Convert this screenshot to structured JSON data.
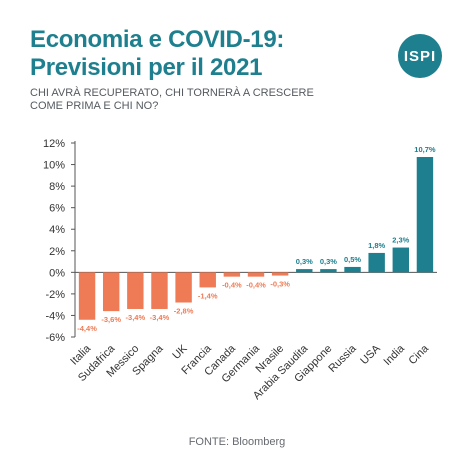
{
  "header": {
    "title_line1": "Economia e COVID-19:",
    "title_line2": "Previsioni per il 2021",
    "subtitle_line1": "CHI AVRÀ RECUPERATO, CHI TORNERÀ A CRESCERE",
    "subtitle_line2": "COME PRIMA E CHI NO?"
  },
  "logo": {
    "text": "ISPI"
  },
  "footer": {
    "source": "FONTE: Bloomberg"
  },
  "colors": {
    "negative": "#ee7b55",
    "positive": "#1e7f8e",
    "title": "#1e7f8e"
  },
  "chart_data": {
    "type": "bar",
    "categories": [
      "Italia",
      "Sudafrica",
      "Messico",
      "Spagna",
      "UK",
      "Francia",
      "Canada",
      "Germania",
      "Nrasile",
      "Arabia Saudita",
      "Giappone",
      "Russia",
      "USA",
      "India",
      "Cina"
    ],
    "values": [
      -4.4,
      -3.6,
      -3.4,
      -3.4,
      -2.8,
      -1.4,
      -0.4,
      -0.4,
      -0.3,
      0.3,
      0.3,
      0.5,
      1.8,
      2.3,
      10.7
    ],
    "data_labels": [
      "-4,4%",
      "-3,6%",
      "-3,4%",
      "-3,4%",
      "-2,8%",
      "-1,4%",
      "-0,4%",
      "-0,4%",
      "-0,3%",
      "0,3%",
      "0,3%",
      "0,5%",
      "1,8%",
      "2,3%",
      "10,7%"
    ],
    "ylim": [
      -6,
      12
    ],
    "yticks": [
      -6,
      -4,
      -2,
      0,
      2,
      4,
      6,
      8,
      10,
      12
    ],
    "ytick_labels": [
      "-6%",
      "-4%",
      "-2%",
      "0%",
      "2%",
      "4%",
      "6%",
      "8%",
      "10%",
      "12%"
    ],
    "grid": false,
    "xlabel": "",
    "ylabel": ""
  }
}
